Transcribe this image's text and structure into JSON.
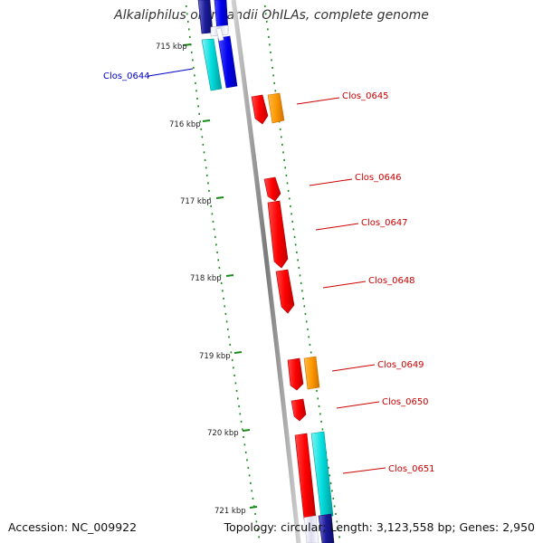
{
  "map": {
    "title": "Alkaliphilus oremlandii OhILAs, complete genome",
    "accession": "Accession: NC_009922",
    "topology": "Topology: circular; Length: 3,123,558 bp; Genes: 2,950"
  },
  "colors": {
    "backbone": "#8c8c8c",
    "tick": "#1a8a1a",
    "plus_label": "#cc0000",
    "minus_label": "#0000cc",
    "red_gene": "#ff0000",
    "orange_gene": "#ff9900",
    "cyan_gene": "#00dddd",
    "blue_gene": "#0000ee",
    "navy_gene": "#1a1a99"
  },
  "kbp_ticks": [
    "715 kbp",
    "716 kbp",
    "717 kbp",
    "718 kbp",
    "719 kbp",
    "720 kbp",
    "721 kbp"
  ],
  "gene_labels": {
    "minus": [
      "Clos_0644"
    ],
    "plus": [
      "Clos_0645",
      "Clos_0646",
      "Clos_0647",
      "Clos_0648",
      "Clos_0649",
      "Clos_0650",
      "Clos_0651"
    ]
  }
}
